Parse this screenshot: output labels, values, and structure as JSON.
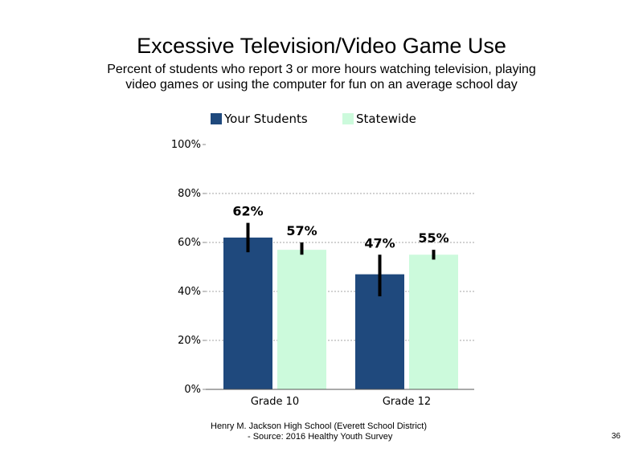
{
  "slide": {
    "page_number": "36",
    "footer_line1": "Henry M. Jackson High School (Everett School District)",
    "footer_line2": "- Source: 2016 Healthy Youth Survey"
  },
  "chart_data": {
    "type": "bar",
    "title": "Excessive Television/Video Game Use",
    "subtitle": "Percent of students who report 3 or more hours watching television, playing video games or using the computer for fun on an average school day",
    "categories": [
      "Grade 10",
      "Grade 12"
    ],
    "series": [
      {
        "name": "Your Students",
        "color": "#1f497d",
        "values": [
          62,
          47
        ],
        "labels": [
          "62%",
          "47%"
        ],
        "error_low": [
          56,
          38
        ],
        "error_high": [
          68,
          55
        ]
      },
      {
        "name": "Statewide",
        "color": "#ccfadc",
        "values": [
          57,
          55
        ],
        "labels": [
          "57%",
          "55%"
        ],
        "error_low": [
          55,
          53
        ],
        "error_high": [
          60,
          57
        ]
      }
    ],
    "ylim": [
      0,
      100
    ],
    "yticks": [
      0,
      20,
      40,
      60,
      80,
      100
    ],
    "ytick_labels": [
      "0%",
      "20%",
      "40%",
      "60%",
      "80%",
      "100%"
    ],
    "grid": true,
    "legend_position": "top"
  }
}
